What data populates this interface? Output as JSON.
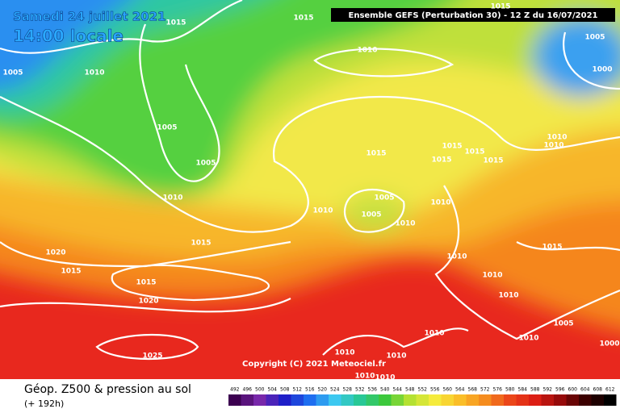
{
  "header": {
    "date": "Samedi 24 juillet 2021",
    "time": "14:00 locale",
    "run": "Ensemble GEFS  (Perturbation 30)  -  12 Z du 16/07/2021"
  },
  "isobar_labels": [
    "1015",
    "1015",
    "1015",
    "1010",
    "1005",
    "1010",
    "1005",
    "1000",
    "1005",
    "1005",
    "1015",
    "1015",
    "1015",
    "1015",
    "1015",
    "1010",
    "1010",
    "1010",
    "1005",
    "1005",
    "1010",
    "1010",
    "1010",
    "1015",
    "1020",
    "1015",
    "1015",
    "1010",
    "1015",
    "1010",
    "1010",
    "1020",
    "1010",
    "1010",
    "1005",
    "1000",
    "1025",
    "1010",
    "1010",
    "1010",
    "1010"
  ],
  "copyright": "Copyright (C) 2021 Meteociel.fr",
  "footer": {
    "title": "Géop. Z500 & pression au sol",
    "lead": "(+ 192h)"
  },
  "legend": {
    "values": [
      492,
      496,
      500,
      504,
      508,
      512,
      516,
      520,
      524,
      528,
      532,
      536,
      540,
      544,
      548,
      552,
      556,
      560,
      564,
      568,
      572,
      576,
      580,
      584,
      588,
      592,
      596,
      600,
      604,
      608,
      612
    ]
  }
}
